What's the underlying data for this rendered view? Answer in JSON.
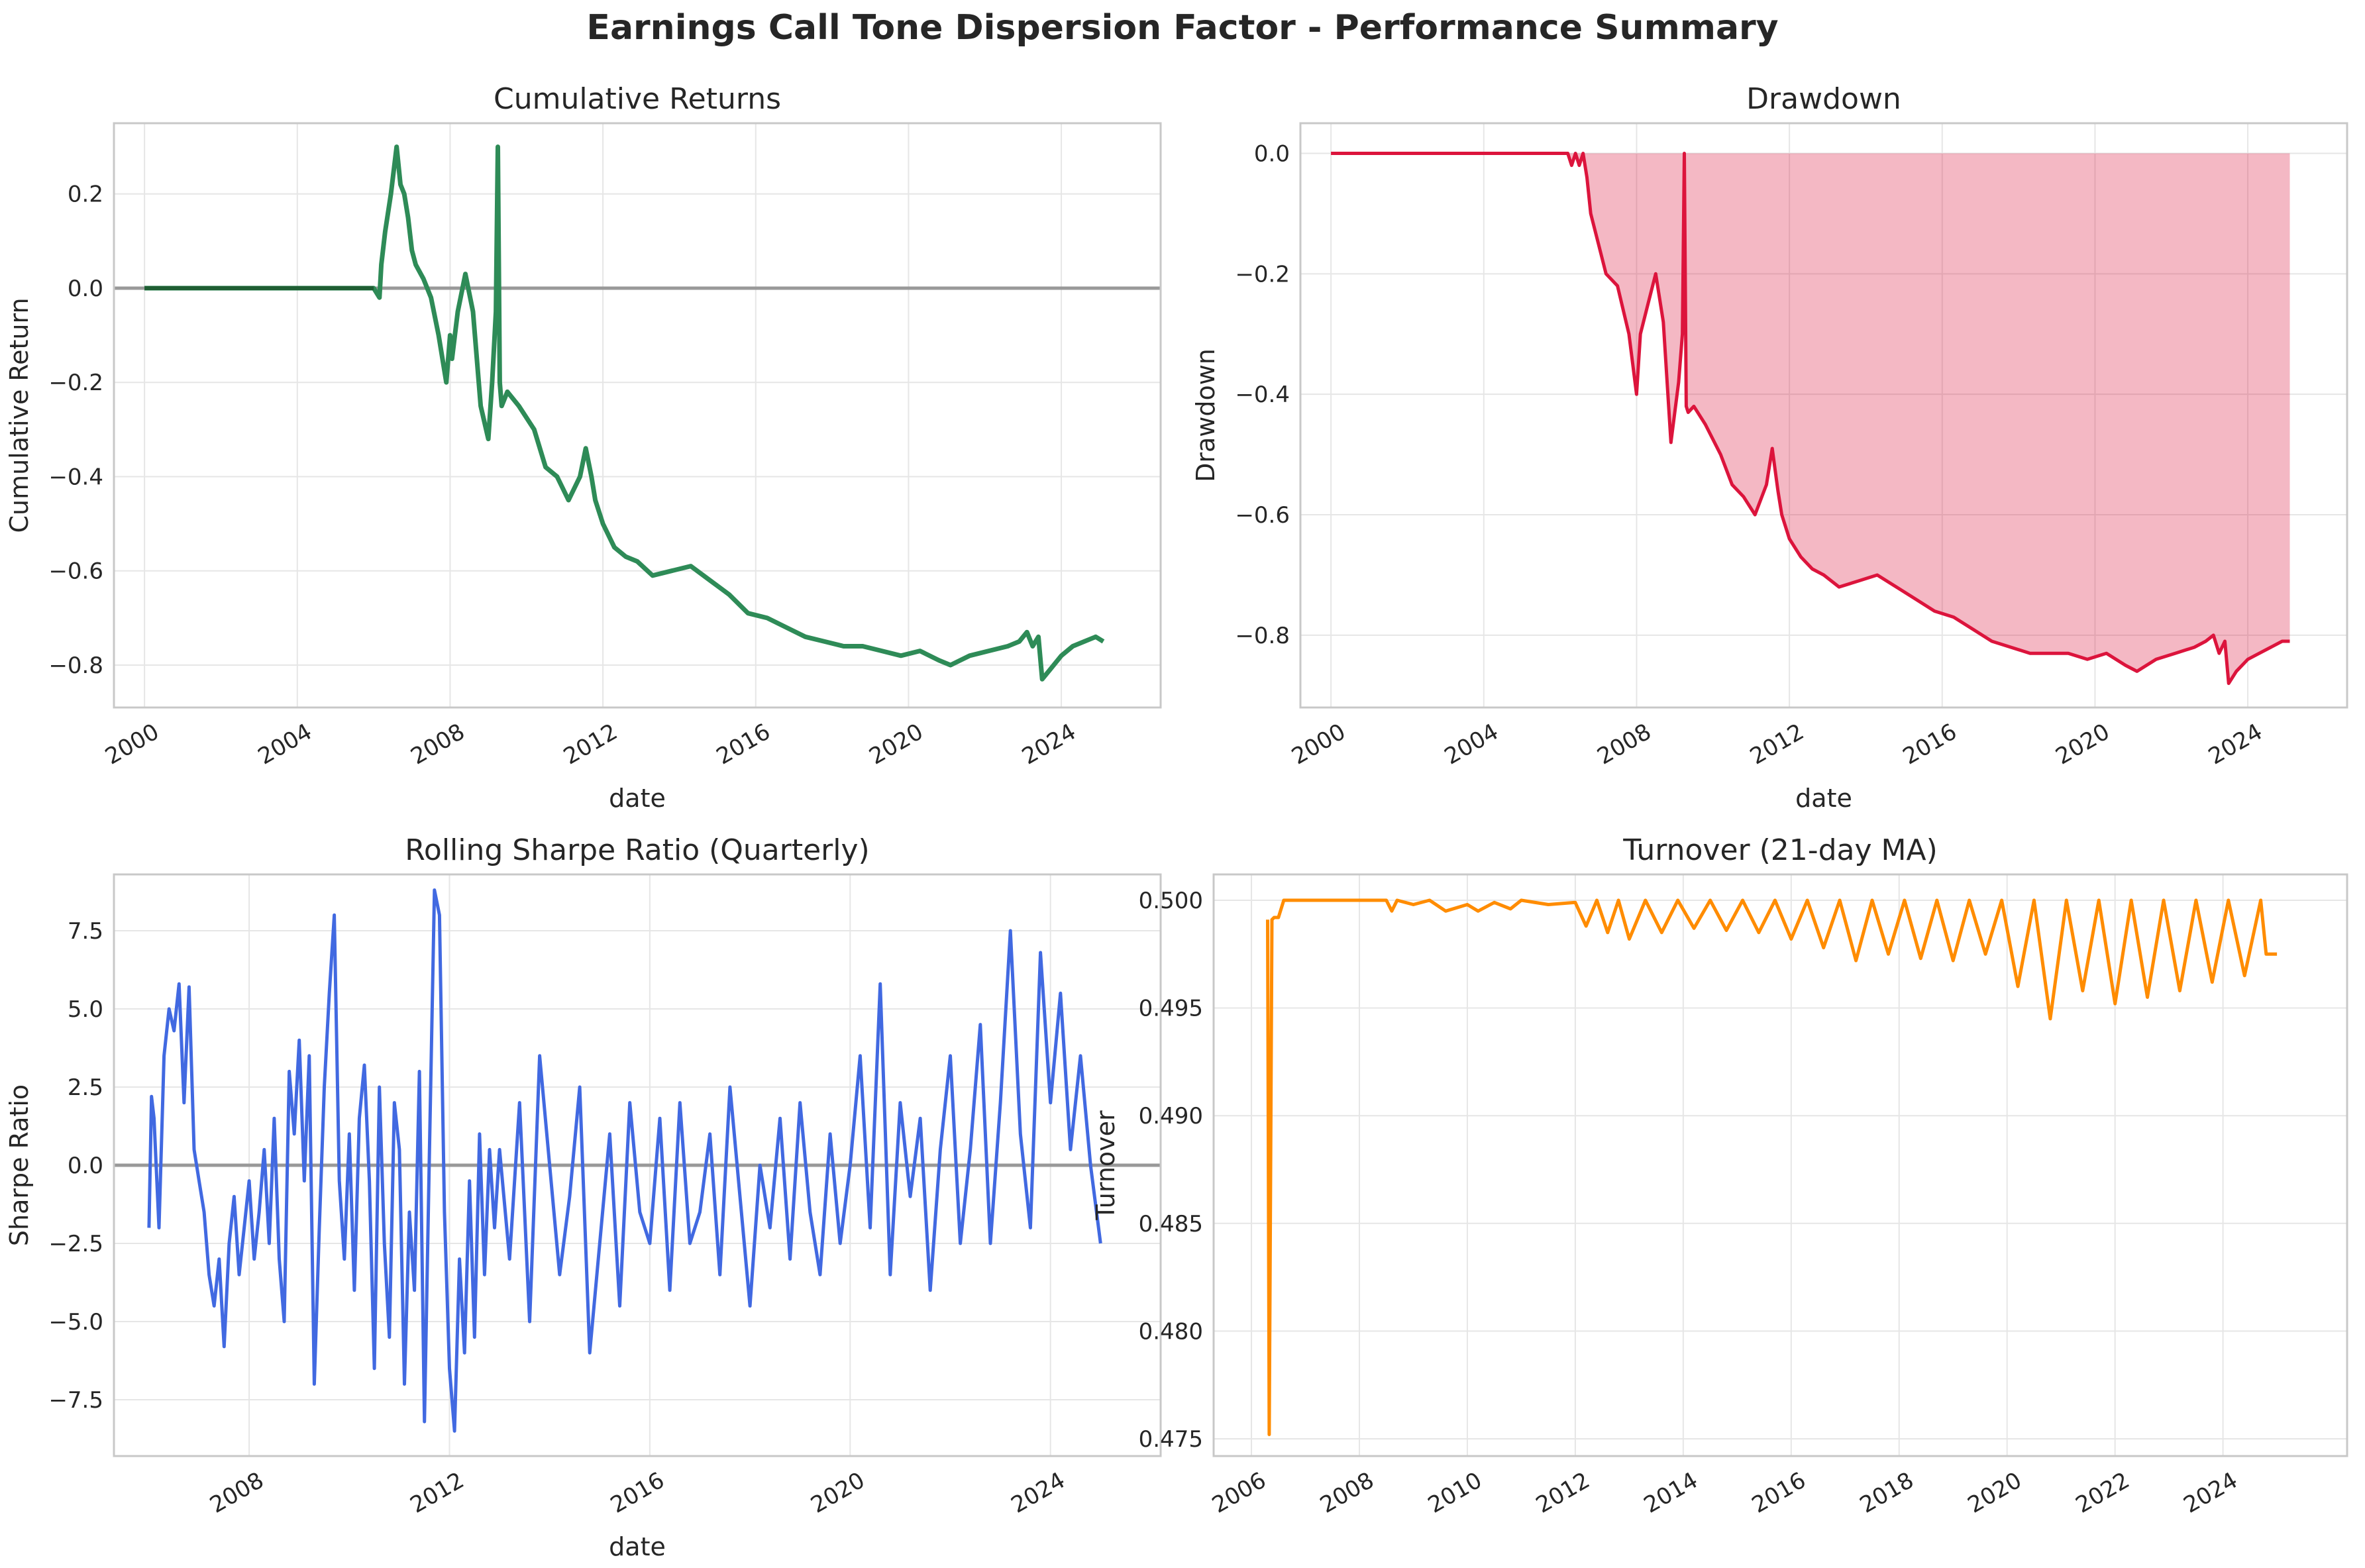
{
  "figure": {
    "title": "Earnings Call Tone Dispersion Factor - Performance Summary"
  },
  "colors": {
    "cumulative": "#2e8b57",
    "cumulative_flat": "#1f5e33",
    "drawdown": "#dc143c",
    "drawdown_fill": "#dc143c",
    "sharpe": "#4169e1",
    "turnover": "#ff8c00",
    "zero_line": "#999999",
    "grid": "#e6e6e6",
    "spine": "#c8c8c8"
  },
  "chart_data": [
    {
      "id": "cumulative",
      "type": "line",
      "title": "Cumulative Returns",
      "xlabel": "date",
      "ylabel": "Cumulative Return",
      "xlim": [
        1999.2,
        2026.6
      ],
      "ylim": [
        -0.89,
        0.35
      ],
      "xticks": [
        2000,
        2004,
        2008,
        2012,
        2016,
        2020,
        2024
      ],
      "xtick_labels": [
        "2000",
        "2004",
        "2008",
        "2012",
        "2016",
        "2020",
        "2024"
      ],
      "yticks": [
        -0.8,
        -0.6,
        -0.4,
        -0.2,
        0.0,
        0.2
      ],
      "ytick_labels": [
        "−0.8",
        "−0.6",
        "−0.4",
        "−0.2",
        "0.0",
        "0.2"
      ],
      "hline": 0.0,
      "grid": true,
      "series": [
        {
          "values_x": [
            2000.0,
            2006.0,
            2006.15,
            2006.2,
            2006.3,
            2006.45,
            2006.6,
            2006.7,
            2006.8,
            2006.9,
            2007.0,
            2007.1,
            2007.3,
            2007.5,
            2007.7,
            2007.9,
            2008.0,
            2008.05,
            2008.2,
            2008.4,
            2008.6,
            2008.8,
            2009.0,
            2009.1,
            2009.2,
            2009.25,
            2009.3,
            2009.35,
            2009.5,
            2009.8,
            2010.2,
            2010.5,
            2010.8,
            2011.1,
            2011.4,
            2011.55,
            2011.7,
            2011.8,
            2012.0,
            2012.3,
            2012.6,
            2012.9,
            2013.3,
            2013.8,
            2014.3,
            2014.8,
            2015.3,
            2015.8,
            2016.3,
            2016.8,
            2017.3,
            2017.8,
            2018.3,
            2018.8,
            2019.3,
            2019.8,
            2020.3,
            2020.8,
            2021.1,
            2021.6,
            2022.1,
            2022.6,
            2022.9,
            2023.1,
            2023.25,
            2023.4,
            2023.5,
            2023.7,
            2024.0,
            2024.3,
            2024.6,
            2024.9,
            2025.1
          ],
          "values_y": [
            0.0,
            0.0,
            -0.02,
            0.05,
            0.12,
            0.2,
            0.3,
            0.22,
            0.2,
            0.15,
            0.08,
            0.05,
            0.02,
            -0.02,
            -0.1,
            -0.2,
            -0.1,
            -0.15,
            -0.05,
            0.03,
            -0.05,
            -0.25,
            -0.32,
            -0.2,
            -0.05,
            0.3,
            -0.2,
            -0.25,
            -0.22,
            -0.25,
            -0.3,
            -0.38,
            -0.4,
            -0.45,
            -0.4,
            -0.34,
            -0.4,
            -0.45,
            -0.5,
            -0.55,
            -0.57,
            -0.58,
            -0.61,
            -0.6,
            -0.59,
            -0.62,
            -0.65,
            -0.69,
            -0.7,
            -0.72,
            -0.74,
            -0.75,
            -0.76,
            -0.76,
            -0.77,
            -0.78,
            -0.77,
            -0.79,
            -0.8,
            -0.78,
            -0.77,
            -0.76,
            -0.75,
            -0.73,
            -0.76,
            -0.74,
            -0.83,
            -0.81,
            -0.78,
            -0.76,
            -0.75,
            -0.74,
            -0.75
          ]
        }
      ]
    },
    {
      "id": "drawdown",
      "type": "area",
      "title": "Drawdown",
      "xlabel": "date",
      "ylabel": "Drawdown",
      "xlim": [
        1999.2,
        2026.6
      ],
      "ylim": [
        -0.92,
        0.05
      ],
      "xticks": [
        2000,
        2004,
        2008,
        2012,
        2016,
        2020,
        2024
      ],
      "xtick_labels": [
        "2000",
        "2004",
        "2008",
        "2012",
        "2016",
        "2020",
        "2024"
      ],
      "yticks": [
        -0.8,
        -0.6,
        -0.4,
        -0.2,
        0.0
      ],
      "ytick_labels": [
        "−0.8",
        "−0.6",
        "−0.4",
        "−0.2",
        "0.0"
      ],
      "grid": true,
      "series": [
        {
          "values_x": [
            2000.0,
            2006.2,
            2006.3,
            2006.4,
            2006.5,
            2006.6,
            2006.7,
            2006.8,
            2007.0,
            2007.2,
            2007.5,
            2007.8,
            2008.0,
            2008.1,
            2008.3,
            2008.5,
            2008.7,
            2008.9,
            2009.1,
            2009.2,
            2009.25,
            2009.3,
            2009.35,
            2009.5,
            2009.8,
            2010.2,
            2010.5,
            2010.8,
            2011.1,
            2011.4,
            2011.55,
            2011.7,
            2011.8,
            2012.0,
            2012.3,
            2012.6,
            2012.9,
            2013.3,
            2013.8,
            2014.3,
            2014.8,
            2015.3,
            2015.8,
            2016.3,
            2016.8,
            2017.3,
            2017.8,
            2018.3,
            2018.8,
            2019.3,
            2019.8,
            2020.3,
            2020.8,
            2021.1,
            2021.6,
            2022.1,
            2022.6,
            2022.9,
            2023.1,
            2023.25,
            2023.4,
            2023.5,
            2023.7,
            2024.0,
            2024.3,
            2024.6,
            2024.9,
            2025.1
          ],
          "values_y": [
            0.0,
            0.0,
            -0.02,
            0.0,
            -0.02,
            0.0,
            -0.04,
            -0.1,
            -0.15,
            -0.2,
            -0.22,
            -0.3,
            -0.4,
            -0.3,
            -0.25,
            -0.2,
            -0.28,
            -0.48,
            -0.38,
            -0.3,
            0.0,
            -0.42,
            -0.43,
            -0.42,
            -0.45,
            -0.5,
            -0.55,
            -0.57,
            -0.6,
            -0.55,
            -0.49,
            -0.56,
            -0.6,
            -0.64,
            -0.67,
            -0.69,
            -0.7,
            -0.72,
            -0.71,
            -0.7,
            -0.72,
            -0.74,
            -0.76,
            -0.77,
            -0.79,
            -0.81,
            -0.82,
            -0.83,
            -0.83,
            -0.83,
            -0.84,
            -0.83,
            -0.85,
            -0.86,
            -0.84,
            -0.83,
            -0.82,
            -0.81,
            -0.8,
            -0.83,
            -0.81,
            -0.88,
            -0.86,
            -0.84,
            -0.83,
            -0.82,
            -0.81,
            -0.81
          ]
        }
      ]
    },
    {
      "id": "sharpe",
      "type": "line",
      "title": "Rolling Sharpe Ratio (Quarterly)",
      "xlabel": "date",
      "ylabel": "Sharpe Ratio",
      "xlim": [
        2005.3,
        2026.2
      ],
      "ylim": [
        -9.3,
        9.3
      ],
      "xticks": [
        2008,
        2012,
        2016,
        2020,
        2024
      ],
      "xtick_labels": [
        "2008",
        "2012",
        "2016",
        "2020",
        "2024"
      ],
      "yticks": [
        -7.5,
        -5.0,
        -2.5,
        0.0,
        2.5,
        5.0,
        7.5
      ],
      "ytick_labels": [
        "−7.5",
        "−5.0",
        "−2.5",
        "0.0",
        "2.5",
        "5.0",
        "7.5"
      ],
      "hline": 0.0,
      "grid": true,
      "series": [
        {
          "values_x": [
            2006.0,
            2006.05,
            2006.1,
            2006.2,
            2006.3,
            2006.4,
            2006.5,
            2006.6,
            2006.7,
            2006.8,
            2006.9,
            2007.0,
            2007.1,
            2007.2,
            2007.3,
            2007.4,
            2007.5,
            2007.6,
            2007.7,
            2007.8,
            2007.9,
            2008.0,
            2008.1,
            2008.2,
            2008.3,
            2008.4,
            2008.5,
            2008.6,
            2008.7,
            2008.8,
            2008.9,
            2009.0,
            2009.1,
            2009.2,
            2009.3,
            2009.4,
            2009.5,
            2009.6,
            2009.7,
            2009.8,
            2009.9,
            2010.0,
            2010.1,
            2010.2,
            2010.3,
            2010.4,
            2010.5,
            2010.6,
            2010.7,
            2010.8,
            2010.9,
            2011.0,
            2011.1,
            2011.2,
            2011.3,
            2011.4,
            2011.5,
            2011.6,
            2011.7,
            2011.8,
            2011.9,
            2012.0,
            2012.1,
            2012.2,
            2012.3,
            2012.4,
            2012.5,
            2012.6,
            2012.7,
            2012.8,
            2012.9,
            2013.0,
            2013.2,
            2013.4,
            2013.6,
            2013.8,
            2014.0,
            2014.2,
            2014.4,
            2014.6,
            2014.8,
            2015.0,
            2015.2,
            2015.4,
            2015.6,
            2015.8,
            2016.0,
            2016.2,
            2016.4,
            2016.6,
            2016.8,
            2017.0,
            2017.2,
            2017.4,
            2017.6,
            2017.8,
            2018.0,
            2018.2,
            2018.4,
            2018.6,
            2018.8,
            2019.0,
            2019.2,
            2019.4,
            2019.6,
            2019.8,
            2020.0,
            2020.2,
            2020.4,
            2020.6,
            2020.8,
            2021.0,
            2021.2,
            2021.4,
            2021.6,
            2021.8,
            2022.0,
            2022.2,
            2022.4,
            2022.6,
            2022.8,
            2023.0,
            2023.2,
            2023.4,
            2023.6,
            2023.8,
            2024.0,
            2024.2,
            2024.4,
            2024.6,
            2024.8,
            2025.0
          ],
          "values_y": [
            -2.0,
            2.2,
            1.5,
            -2.0,
            3.5,
            5.0,
            4.3,
            5.8,
            2.0,
            5.7,
            0.5,
            -0.5,
            -1.5,
            -3.5,
            -4.5,
            -3.0,
            -5.8,
            -2.5,
            -1.0,
            -3.5,
            -2.0,
            -0.5,
            -3.0,
            -1.5,
            0.5,
            -2.5,
            1.5,
            -3.0,
            -5.0,
            3.0,
            1.0,
            4.0,
            -0.5,
            3.5,
            -7.0,
            -2.0,
            2.5,
            5.5,
            8.0,
            -0.5,
            -3.0,
            1.0,
            -4.0,
            1.5,
            3.2,
            -0.5,
            -6.5,
            2.5,
            -2.5,
            -5.5,
            2.0,
            0.5,
            -7.0,
            -1.5,
            -4.0,
            3.0,
            -8.2,
            0.5,
            8.8,
            8.0,
            -1.5,
            -6.5,
            -8.5,
            -3.0,
            -6.0,
            -0.5,
            -5.5,
            1.0,
            -3.5,
            0.5,
            -2.0,
            0.5,
            -3.0,
            2.0,
            -5.0,
            3.5,
            0.0,
            -3.5,
            -1.0,
            2.5,
            -6.0,
            -2.5,
            1.0,
            -4.5,
            2.0,
            -1.5,
            -2.5,
            1.5,
            -4.0,
            2.0,
            -2.5,
            -1.5,
            1.0,
            -3.5,
            2.5,
            -1.0,
            -4.5,
            0.0,
            -2.0,
            1.5,
            -3.0,
            2.0,
            -1.5,
            -3.5,
            1.0,
            -2.5,
            0.0,
            3.5,
            -2.0,
            5.8,
            -3.5,
            2.0,
            -1.0,
            1.5,
            -4.0,
            0.5,
            3.5,
            -2.5,
            0.5,
            4.5,
            -2.5,
            2.0,
            7.5,
            1.0,
            -2.0,
            6.8,
            2.0,
            5.5,
            0.5,
            3.5,
            0.0,
            -2.5
          ]
        }
      ]
    },
    {
      "id": "turnover",
      "type": "line",
      "title": "Turnover (21-day MA)",
      "xlabel": "",
      "ylabel": "Turnover",
      "xlim": [
        2005.3,
        2026.3
      ],
      "ylim": [
        0.4742,
        0.5012
      ],
      "xticks": [
        2006,
        2008,
        2010,
        2012,
        2014,
        2016,
        2018,
        2020,
        2022,
        2024
      ],
      "xtick_labels": [
        "2006",
        "2008",
        "2010",
        "2012",
        "2014",
        "2016",
        "2018",
        "2020",
        "2022",
        "2024"
      ],
      "yticks": [
        0.475,
        0.48,
        0.485,
        0.49,
        0.495,
        0.5
      ],
      "ytick_labels": [
        "0.475",
        "0.480",
        "0.485",
        "0.490",
        "0.495",
        "0.500"
      ],
      "grid": true,
      "series": [
        {
          "values_x": [
            2006.3,
            2006.33,
            2006.38,
            2006.42,
            2006.5,
            2006.6,
            2007.0,
            2008.0,
            2008.5,
            2008.6,
            2008.7,
            2009.0,
            2009.3,
            2009.6,
            2010.0,
            2010.2,
            2010.5,
            2010.8,
            2011.0,
            2011.5,
            2012.0,
            2012.2,
            2012.4,
            2012.6,
            2012.8,
            2013.0,
            2013.3,
            2013.6,
            2013.9,
            2014.2,
            2014.5,
            2014.8,
            2015.1,
            2015.4,
            2015.7,
            2016.0,
            2016.3,
            2016.6,
            2016.9,
            2017.2,
            2017.5,
            2017.8,
            2018.1,
            2018.4,
            2018.7,
            2019.0,
            2019.3,
            2019.6,
            2019.9,
            2020.2,
            2020.5,
            2020.8,
            2021.1,
            2021.4,
            2021.7,
            2022.0,
            2022.3,
            2022.6,
            2022.9,
            2023.2,
            2023.5,
            2023.8,
            2024.1,
            2024.4,
            2024.7,
            2024.8,
            2025.0
          ],
          "values_y": [
            0.4991,
            0.4752,
            0.4991,
            0.4992,
            0.4992,
            0.5,
            0.5,
            0.5,
            0.5,
            0.4995,
            0.5,
            0.4998,
            0.5,
            0.4995,
            0.4998,
            0.4995,
            0.4999,
            0.4996,
            0.5,
            0.4998,
            0.4999,
            0.4988,
            0.5,
            0.4985,
            0.5,
            0.4982,
            0.5,
            0.4985,
            0.5,
            0.4987,
            0.5,
            0.4986,
            0.5,
            0.4985,
            0.5,
            0.4982,
            0.5,
            0.4978,
            0.5,
            0.4972,
            0.5,
            0.4975,
            0.5,
            0.4973,
            0.5,
            0.4972,
            0.5,
            0.4975,
            0.5,
            0.496,
            0.5,
            0.4945,
            0.5,
            0.4958,
            0.5,
            0.4952,
            0.5,
            0.4955,
            0.5,
            0.4958,
            0.5,
            0.4962,
            0.5,
            0.4965,
            0.5,
            0.4975,
            0.4975
          ]
        }
      ]
    }
  ]
}
